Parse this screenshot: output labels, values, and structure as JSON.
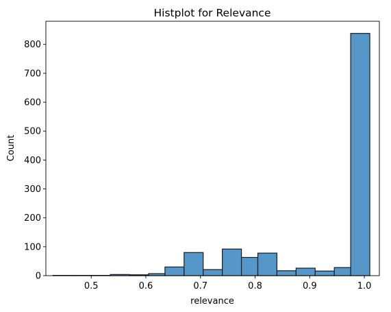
{
  "chart_data": {
    "type": "bar",
    "title": "Histplot for Relevance",
    "xlabel": "relevance",
    "ylabel": "Count",
    "xlim": [
      0.417,
      1.0275
    ],
    "ylim": [
      0,
      880
    ],
    "xticks": [
      0.5,
      0.6,
      0.7,
      0.8,
      0.9,
      1.0
    ],
    "xtick_labels": [
      "0.5",
      "0.6",
      "0.7",
      "0.8",
      "0.9",
      "1.0"
    ],
    "yticks": [
      0,
      100,
      200,
      300,
      400,
      500,
      600,
      700,
      800
    ],
    "ytick_labels": [
      "0",
      "100",
      "200",
      "300",
      "400",
      "500",
      "600",
      "700",
      "800"
    ],
    "grid": false,
    "bar_color": "#5497c8",
    "edge_color": "#1a1a1a",
    "bins": [
      {
        "x0": 0.43,
        "x1": 0.465,
        "count": 1
      },
      {
        "x0": 0.465,
        "x1": 0.5,
        "count": 1
      },
      {
        "x0": 0.5,
        "x1": 0.535,
        "count": 1
      },
      {
        "x0": 0.535,
        "x1": 0.57,
        "count": 4
      },
      {
        "x0": 0.57,
        "x1": 0.605,
        "count": 3
      },
      {
        "x0": 0.605,
        "x1": 0.635,
        "count": 7
      },
      {
        "x0": 0.635,
        "x1": 0.67,
        "count": 30
      },
      {
        "x0": 0.67,
        "x1": 0.705,
        "count": 80
      },
      {
        "x0": 0.705,
        "x1": 0.74,
        "count": 21
      },
      {
        "x0": 0.74,
        "x1": 0.775,
        "count": 92
      },
      {
        "x0": 0.775,
        "x1": 0.805,
        "count": 63
      },
      {
        "x0": 0.805,
        "x1": 0.84,
        "count": 78
      },
      {
        "x0": 0.84,
        "x1": 0.875,
        "count": 17
      },
      {
        "x0": 0.875,
        "x1": 0.91,
        "count": 26
      },
      {
        "x0": 0.91,
        "x1": 0.945,
        "count": 16
      },
      {
        "x0": 0.945,
        "x1": 0.975,
        "count": 28
      },
      {
        "x0": 0.975,
        "x1": 1.01,
        "count": 838
      }
    ]
  }
}
